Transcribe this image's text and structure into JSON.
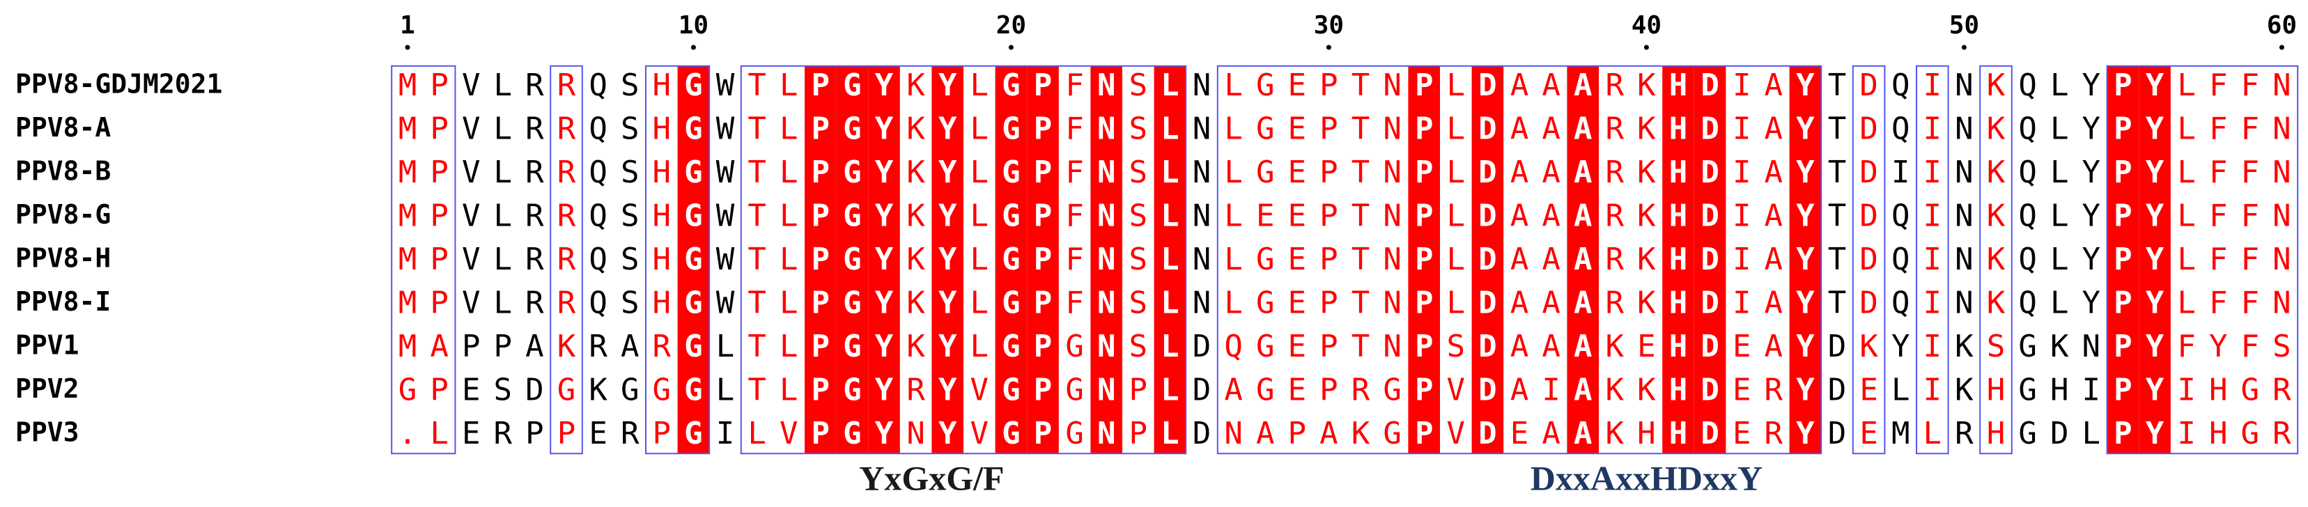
{
  "alignment": {
    "ruler": [
      1,
      10,
      20,
      30,
      40,
      50,
      60
    ],
    "rows": [
      {
        "name": "PPV8-GDJM2021",
        "sequence": "MPVLRRQSHGWTLPGYKYLGPFNSLNLGEPTNPLDAAARKHDIAYTDQINKQLYPYLFFN"
      },
      {
        "name": "PPV8-A",
        "sequence": "MPVLRRQSHGWTLPGYKYLGPFNSLNLGEPTNPLDAAARKHDIAYTDQINKQLYPYLFFN"
      },
      {
        "name": "PPV8-B",
        "sequence": "MPVLRRQSHGWTLPGYKYLGPFNSLNLGEPTNPLDAAARKHDIAYTDIINKQLYPYLFFN"
      },
      {
        "name": "PPV8-G",
        "sequence": "MPVLRRQSHGWTLPGYKYLGPFNSLNLEEPTNPLDAAARKHDIAYTDQINKQLYPYLFFN"
      },
      {
        "name": "PPV8-H",
        "sequence": "MPVLRRQSHGWTLPGYKYLGPFNSLNLGEPTNPLDAAARKHDIAYTDQINKQLYPYLFFN"
      },
      {
        "name": "PPV8-I",
        "sequence": "MPVLRRQSHGWTLPGYKYLGPFNSLNLGEPTNPLDAAARKHDIAYTDQINKQLYPYLFFN"
      },
      {
        "name": "PPV1",
        "sequence": "MAPPAKRARGLTLPGYKYLGPGNSLDQGEPTNPSDAAAKEHDEAYDKYIKSGKNPYFYFS"
      },
      {
        "name": "PPV2",
        "sequence": "GPESDGKGGGLTLPGYRYVGPGNPLDAGEPRGPVDAIAKKHDERYDELIKHGHIPYIHGR"
      },
      {
        "name": "PPV3",
        "sequence": ".LERPPERPGILVPGYNYVGPGNPLDNAPAKGPVDEAAKHHDERYDEMLRHGDLPYIHGR"
      }
    ],
    "column_classes": [
      "s",
      "s",
      "n",
      "n",
      "n",
      "s",
      "n",
      "n",
      "s",
      "i",
      "n",
      "s",
      "s",
      "i",
      "i",
      "i",
      "s",
      "i",
      "s",
      "i",
      "i",
      "s",
      "i",
      "s",
      "i",
      "n",
      "s",
      "s",
      "s",
      "s",
      "s",
      "s",
      "i",
      "s",
      "i",
      "s",
      "s",
      "i",
      "s",
      "s",
      "i",
      "i",
      "s",
      "s",
      "i",
      "n",
      "s",
      "n",
      "s",
      "n",
      "s",
      "n",
      "n",
      "n",
      "i",
      "i",
      "s",
      "s",
      "s",
      "s"
    ],
    "motifs": [
      {
        "label": "YxGxG/F",
        "start": 14,
        "end": 21,
        "color": "#1a1a1a"
      },
      {
        "label": "DxxAxxHDxxY",
        "start": 35,
        "end": 45,
        "color": "#1f3864"
      }
    ],
    "colors": {
      "identical_bg": "#ff0000",
      "identical_fg": "#ffffff",
      "similar_fg": "#ff0000",
      "other_fg": "#000000",
      "box": "#5555ee"
    }
  }
}
